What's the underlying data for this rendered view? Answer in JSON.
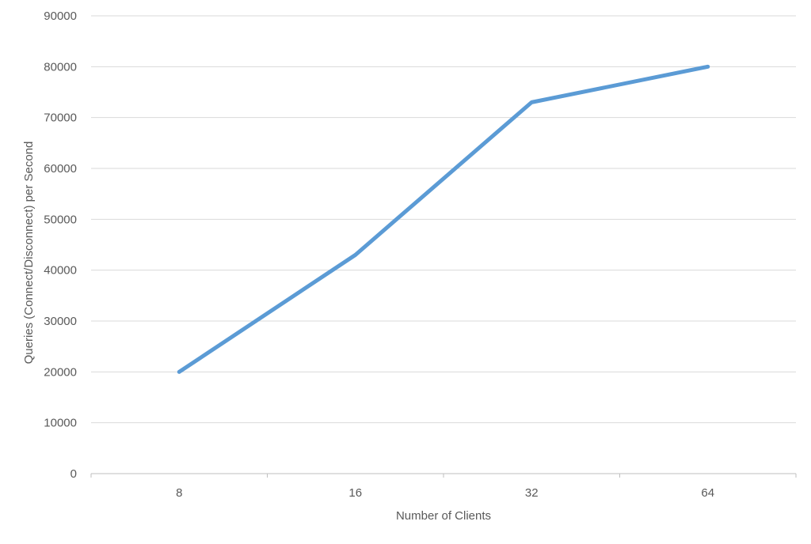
{
  "chart_data": {
    "type": "line",
    "title": "",
    "xlabel": "Number of Clients",
    "ylabel": "Queries (Connect/Disconnect) per Second",
    "categories": [
      "8",
      "16",
      "32",
      "64"
    ],
    "series": [
      {
        "values": [
          20000,
          43000,
          73000,
          80000
        ],
        "color": "#5b9bd5"
      }
    ],
    "ylim": [
      0,
      90000
    ],
    "yticks": [
      0,
      10000,
      20000,
      30000,
      40000,
      50000,
      60000,
      70000,
      80000,
      90000
    ],
    "grid": true,
    "legend": "none"
  }
}
